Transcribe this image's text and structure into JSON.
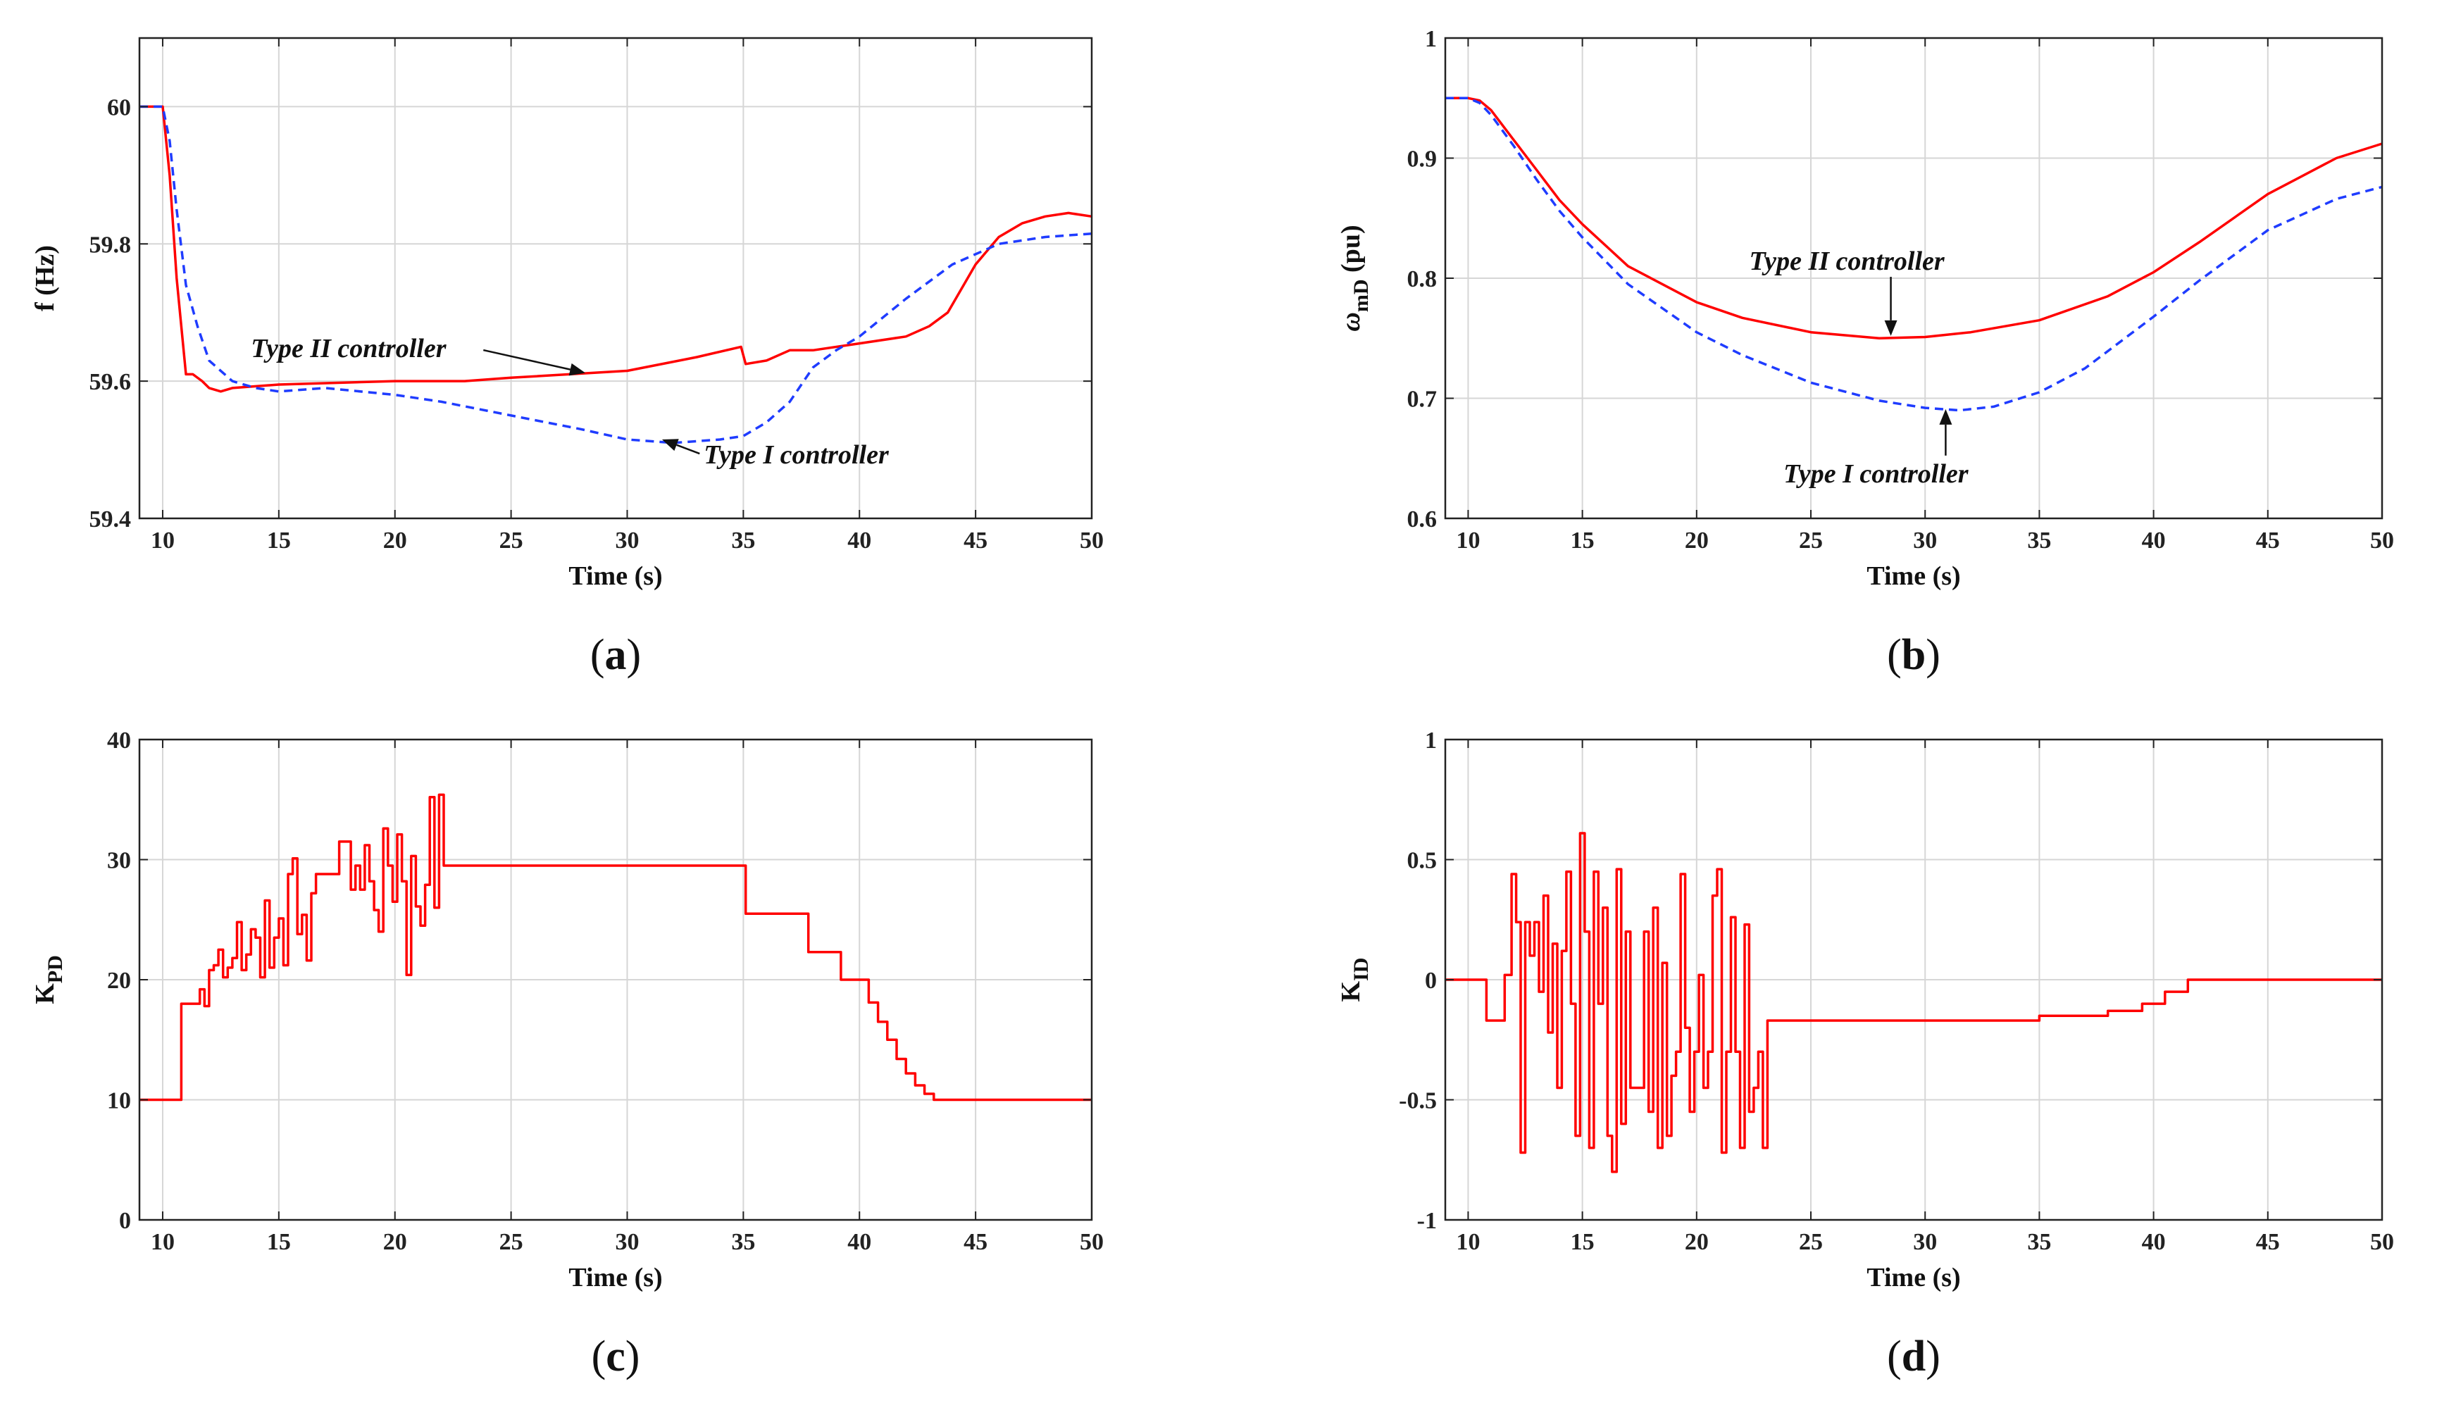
{
  "chart_data": [
    {
      "id": "a",
      "type": "line",
      "caption": {
        "open": "(",
        "letter": "a",
        "close": ")"
      },
      "xlabel": "Time (s)",
      "ylabel": "f (Hz)",
      "xlim": [
        9,
        50
      ],
      "ylim": [
        59.4,
        60.1
      ],
      "xticks": [
        10,
        15,
        20,
        25,
        30,
        35,
        40,
        45,
        50
      ],
      "yticks": [
        59.4,
        59.6,
        59.8,
        60
      ],
      "ytick_labels": [
        "59.4",
        "59.6",
        "59.8",
        "60"
      ],
      "grid": true,
      "series": [
        {
          "name": "Type II controller",
          "style": "solid",
          "color": "#ff0000",
          "x": [
            9,
            10,
            10.3,
            10.6,
            11,
            11.3,
            11.7,
            12,
            12.5,
            13,
            15,
            20,
            23,
            25,
            30,
            33,
            34.9,
            35.1,
            36,
            37,
            38,
            40,
            42,
            43,
            43.8,
            45,
            46,
            47,
            48,
            49,
            50
          ],
          "y": [
            60,
            60,
            59.9,
            59.75,
            59.61,
            59.61,
            59.6,
            59.59,
            59.585,
            59.59,
            59.595,
            59.6,
            59.6,
            59.605,
            59.615,
            59.635,
            59.65,
            59.625,
            59.63,
            59.645,
            59.645,
            59.655,
            59.665,
            59.68,
            59.7,
            59.77,
            59.81,
            59.83,
            59.84,
            59.845,
            59.84
          ]
        },
        {
          "name": "Type I controller",
          "style": "dashed",
          "color": "#1f3cff",
          "x": [
            9,
            10,
            10.3,
            10.6,
            11,
            11.5,
            12,
            13,
            14,
            15,
            17,
            20,
            22,
            25,
            28,
            30,
            32,
            34,
            35,
            36,
            37,
            38,
            39,
            40,
            42,
            44,
            46,
            48,
            50
          ],
          "y": [
            60,
            60,
            59.95,
            59.85,
            59.74,
            59.68,
            59.63,
            59.6,
            59.59,
            59.585,
            59.59,
            59.58,
            59.57,
            59.55,
            59.53,
            59.515,
            59.51,
            59.515,
            59.52,
            59.54,
            59.57,
            59.62,
            59.645,
            59.665,
            59.72,
            59.77,
            59.8,
            59.81,
            59.815
          ]
        }
      ],
      "annotations": [
        {
          "text": "Type II controller",
          "x": 13.8,
          "y": 59.635,
          "arrow_to": [
            28.2,
            59.612
          ]
        },
        {
          "text": "Type I controller",
          "x": 33.3,
          "y": 59.48,
          "arrow_to": [
            31.5,
            59.515
          ]
        }
      ]
    },
    {
      "id": "b",
      "type": "line",
      "caption": {
        "open": "(",
        "letter": "b",
        "close": ")"
      },
      "xlabel": "Time (s)",
      "ylabel_main": "ω",
      "ylabel_sub": "mD",
      "ylabel_rest": " (pu)",
      "xlim": [
        9,
        50
      ],
      "ylim": [
        0.6,
        1
      ],
      "xticks": [
        10,
        15,
        20,
        25,
        30,
        35,
        40,
        45,
        50
      ],
      "yticks": [
        0.6,
        0.7,
        0.8,
        0.9,
        1
      ],
      "ytick_labels": [
        "0.6",
        "0.7",
        "0.8",
        "0.9",
        "1"
      ],
      "grid": true,
      "series": [
        {
          "name": "Type II controller",
          "style": "solid",
          "color": "#ff0000",
          "x": [
            9,
            10,
            10.5,
            11,
            12,
            13,
            14,
            15,
            17,
            20,
            22,
            25,
            28,
            30,
            32,
            35,
            38,
            40,
            42,
            45,
            48,
            50
          ],
          "y": [
            0.95,
            0.95,
            0.948,
            0.94,
            0.915,
            0.89,
            0.865,
            0.845,
            0.81,
            0.78,
            0.767,
            0.755,
            0.75,
            0.751,
            0.755,
            0.765,
            0.785,
            0.805,
            0.83,
            0.87,
            0.9,
            0.912
          ]
        },
        {
          "name": "Type I controller",
          "style": "dashed",
          "color": "#1f3cff",
          "x": [
            9,
            10,
            10.5,
            11,
            12,
            13,
            14,
            15,
            17,
            20,
            22,
            25,
            28,
            30,
            31.5,
            33,
            35,
            37,
            40,
            42,
            45,
            48,
            50
          ],
          "y": [
            0.95,
            0.95,
            0.946,
            0.936,
            0.91,
            0.882,
            0.856,
            0.834,
            0.795,
            0.755,
            0.736,
            0.713,
            0.698,
            0.692,
            0.69,
            0.693,
            0.705,
            0.725,
            0.768,
            0.798,
            0.84,
            0.866,
            0.876
          ]
        }
      ],
      "annotations": [
        {
          "text": "Type II controller",
          "x": 22.3,
          "y": 0.807,
          "arrow_to": [
            28.5,
            0.752
          ]
        },
        {
          "text": "Type I controller",
          "x": 23.8,
          "y": 0.63,
          "arrow_to": [
            30.9,
            0.691
          ]
        }
      ]
    },
    {
      "id": "c",
      "type": "line",
      "caption": {
        "open": "(",
        "letter": "c",
        "close": ")"
      },
      "xlabel": "Time (s)",
      "ylabel_main": "K",
      "ylabel_sub": "PD",
      "ylabel_rest": "",
      "xlim": [
        9,
        50
      ],
      "ylim": [
        0,
        40
      ],
      "xticks": [
        10,
        15,
        20,
        25,
        30,
        35,
        40,
        45,
        50
      ],
      "yticks": [
        0,
        10,
        20,
        30,
        40
      ],
      "ytick_labels": [
        "0",
        "10",
        "20",
        "30",
        "40"
      ],
      "grid": true,
      "series": [
        {
          "name": "K_PD",
          "style": "step",
          "color": "#ff0000",
          "x": [
            9,
            10.8,
            11.6,
            11.8,
            12.0,
            12.2,
            12.4,
            12.6,
            12.8,
            13.0,
            13.2,
            13.4,
            13.6,
            13.8,
            14.0,
            14.2,
            14.4,
            14.6,
            14.8,
            15.0,
            15.2,
            15.4,
            15.6,
            15.8,
            16.0,
            16.2,
            16.4,
            16.6,
            16.8,
            17.0,
            17.6,
            18.1,
            18.3,
            18.5,
            18.7,
            18.9,
            19.1,
            19.3,
            19.5,
            19.7,
            19.9,
            20.1,
            20.3,
            20.5,
            20.7,
            20.9,
            21.1,
            21.3,
            21.5,
            21.7,
            21.9,
            22.1,
            22.3,
            22.5,
            22.7,
            22.9,
            23.1,
            35.1,
            37.8,
            39.2,
            40.4,
            40.8,
            41.2,
            41.6,
            42.0,
            42.4,
            42.8,
            43.2,
            50
          ],
          "y": [
            10,
            18,
            19.2,
            17.8,
            20.8,
            21.2,
            22.5,
            20.2,
            21.0,
            21.8,
            24.8,
            20.8,
            22.1,
            24.2,
            23.5,
            20.2,
            26.6,
            21.0,
            23.5,
            25.1,
            21.2,
            28.8,
            30.1,
            23.8,
            25.4,
            21.6,
            27.2,
            28.8,
            28.8,
            28.8,
            31.5,
            27.5,
            29.5,
            27.5,
            31.2,
            28.2,
            25.8,
            24.0,
            32.6,
            29.5,
            26.5,
            32.1,
            28.2,
            20.4,
            30.3,
            26.1,
            24.5,
            27.9,
            35.2,
            26.0,
            35.4,
            29.5,
            29.5,
            29.5,
            29.5,
            29.5,
            29.5,
            25.5,
            22.3,
            20.0,
            18.1,
            16.5,
            15.0,
            13.4,
            12.2,
            11.2,
            10.5,
            10.0,
            10.0
          ]
        }
      ]
    },
    {
      "id": "d",
      "type": "line",
      "caption": {
        "open": "(",
        "letter": "d",
        "close": ")"
      },
      "xlabel": "Time (s)",
      "ylabel_main": "K",
      "ylabel_sub": "ID",
      "ylabel_rest": "",
      "xlim": [
        9,
        50
      ],
      "ylim": [
        -1,
        1
      ],
      "xticks": [
        10,
        15,
        20,
        25,
        30,
        35,
        40,
        45,
        50
      ],
      "yticks": [
        -1,
        -0.5,
        0,
        0.5,
        1
      ],
      "ytick_labels": [
        "-1",
        "-0.5",
        "0",
        "0.5",
        "1"
      ],
      "grid": true,
      "series": [
        {
          "name": "K_ID",
          "style": "step",
          "color": "#ff0000",
          "x": [
            9,
            10.8,
            11.6,
            11.9,
            12.1,
            12.3,
            12.5,
            12.7,
            12.9,
            13.1,
            13.3,
            13.5,
            13.7,
            13.9,
            14.1,
            14.3,
            14.5,
            14.7,
            14.9,
            15.1,
            15.3,
            15.5,
            15.7,
            15.9,
            16.1,
            16.3,
            16.5,
            16.7,
            16.9,
            17.1,
            17.3,
            17.5,
            17.7,
            17.9,
            18.1,
            18.3,
            18.5,
            18.7,
            18.9,
            19.1,
            19.3,
            19.5,
            19.7,
            19.9,
            20.1,
            20.3,
            20.5,
            20.7,
            20.9,
            21.1,
            21.3,
            21.5,
            21.7,
            21.9,
            22.1,
            22.3,
            22.5,
            22.7,
            22.9,
            23.1,
            35.0,
            38.0,
            39.5,
            40.5,
            41.5,
            50
          ],
          "y": [
            0,
            -0.17,
            0.02,
            0.44,
            0.24,
            -0.72,
            0.24,
            0.1,
            0.24,
            -0.05,
            0.35,
            -0.22,
            0.15,
            -0.45,
            0.12,
            0.45,
            -0.1,
            -0.65,
            0.61,
            0.2,
            -0.7,
            0.45,
            -0.1,
            0.3,
            -0.65,
            -0.8,
            0.46,
            -0.6,
            0.2,
            -0.45,
            -0.45,
            -0.45,
            0.2,
            -0.55,
            0.3,
            -0.7,
            0.07,
            -0.65,
            -0.4,
            -0.3,
            0.44,
            -0.2,
            -0.55,
            -0.3,
            0.02,
            -0.45,
            -0.3,
            0.35,
            0.46,
            -0.72,
            -0.3,
            0.26,
            -0.3,
            -0.7,
            0.23,
            -0.55,
            -0.45,
            -0.3,
            -0.7,
            -0.17,
            -0.15,
            -0.13,
            -0.1,
            -0.05,
            0,
            0
          ]
        }
      ]
    }
  ]
}
